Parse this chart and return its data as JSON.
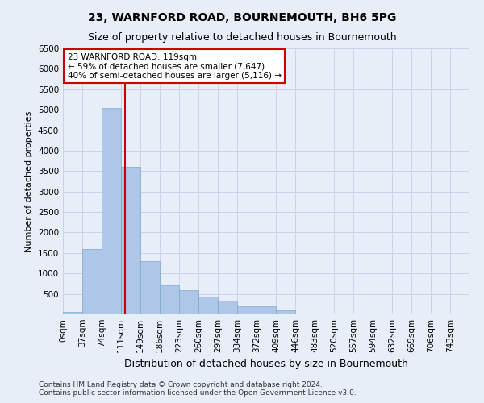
{
  "title": "23, WARNFORD ROAD, BOURNEMOUTH, BH6 5PG",
  "subtitle": "Size of property relative to detached houses in Bournemouth",
  "xlabel": "Distribution of detached houses by size in Bournemouth",
  "ylabel": "Number of detached properties",
  "footer_line1": "Contains HM Land Registry data © Crown copyright and database right 2024.",
  "footer_line2": "Contains public sector information licensed under the Open Government Licence v3.0.",
  "bar_categories": [
    "0sqm",
    "37sqm",
    "74sqm",
    "111sqm",
    "149sqm",
    "186sqm",
    "223sqm",
    "260sqm",
    "297sqm",
    "334sqm",
    "372sqm",
    "409sqm",
    "446sqm",
    "483sqm",
    "520sqm",
    "557sqm",
    "594sqm",
    "632sqm",
    "669sqm",
    "706sqm",
    "743sqm"
  ],
  "bar_values": [
    55,
    1600,
    5050,
    3600,
    1300,
    700,
    600,
    430,
    330,
    190,
    190,
    90,
    0,
    0,
    0,
    0,
    0,
    0,
    0,
    0,
    0
  ],
  "bar_color": "#aec6e8",
  "bar_edge_color": "#7aaad0",
  "property_label": "23 WARNFORD ROAD: 119sqm",
  "annotation_line1": "← 59% of detached houses are smaller (7,647)",
  "annotation_line2": "40% of semi-detached houses are larger (5,116) →",
  "vline_color": "#cc0000",
  "vline_x": 3.22,
  "annotation_box_facecolor": "#ffffff",
  "annotation_box_edgecolor": "#cc0000",
  "grid_color": "#c8d4e8",
  "background_color": "#e8eef8",
  "ylim": [
    0,
    6500
  ],
  "yticks": [
    0,
    500,
    1000,
    1500,
    2000,
    2500,
    3000,
    3500,
    4000,
    4500,
    5000,
    5500,
    6000,
    6500
  ],
  "title_fontsize": 10,
  "subtitle_fontsize": 9,
  "ylabel_fontsize": 8,
  "xlabel_fontsize": 9,
  "tick_fontsize": 7.5,
  "footer_fontsize": 6.5,
  "annot_fontsize": 7.5
}
